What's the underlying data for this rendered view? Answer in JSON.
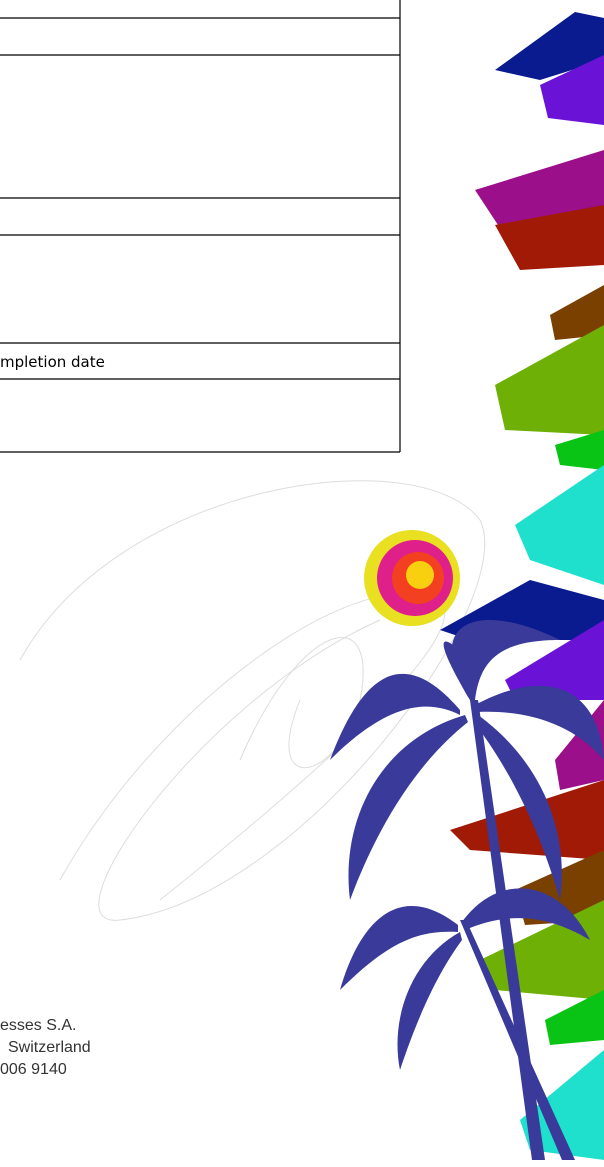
{
  "table": {
    "completion_label": "mpletion date"
  },
  "footer": {
    "lines": [
      "esses S.A.",
      "Switzerland",
      "006 9140"
    ]
  }
}
